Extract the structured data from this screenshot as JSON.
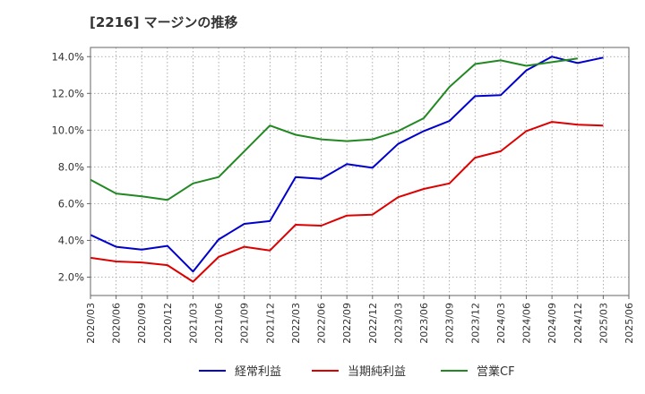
{
  "chart_data": {
    "type": "line",
    "title": "[2216]  マージンの推移",
    "x": [
      "2020/03",
      "2020/06",
      "2020/09",
      "2020/12",
      "2021/03",
      "2021/06",
      "2021/09",
      "2021/12",
      "2022/03",
      "2022/06",
      "2022/09",
      "2022/12",
      "2023/03",
      "2023/06",
      "2023/09",
      "2023/12",
      "2024/03",
      "2024/06",
      "2024/09",
      "2024/12",
      "2025/03",
      "2025/06"
    ],
    "ylim": [
      1.0,
      14.5
    ],
    "yticks": [
      2.0,
      4.0,
      6.0,
      8.0,
      10.0,
      12.0,
      14.0
    ],
    "ytick_labels": [
      "2.0%",
      "4.0%",
      "6.0%",
      "8.0%",
      "10.0%",
      "12.0%",
      "14.0%"
    ],
    "grid": true,
    "legend_position": "bottom",
    "series": [
      {
        "name": "経常利益",
        "color": "#0000cc",
        "values": [
          4.3,
          3.65,
          3.5,
          3.7,
          2.3,
          4.05,
          4.9,
          5.05,
          7.45,
          7.35,
          8.15,
          7.95,
          9.25,
          9.95,
          10.5,
          11.85,
          11.9,
          13.25,
          14.0,
          13.65,
          13.95,
          null
        ]
      },
      {
        "name": "当期純利益",
        "color": "#dd0000",
        "values": [
          3.05,
          2.85,
          2.8,
          2.65,
          1.75,
          3.1,
          3.65,
          3.45,
          4.85,
          4.8,
          5.35,
          5.4,
          6.35,
          6.8,
          7.1,
          8.5,
          8.85,
          9.95,
          10.45,
          10.3,
          10.25,
          null
        ]
      },
      {
        "name": "営業CF",
        "color": "#228822",
        "values": [
          7.3,
          6.55,
          6.4,
          6.2,
          7.1,
          7.45,
          8.85,
          10.25,
          9.75,
          9.5,
          9.4,
          9.5,
          9.95,
          10.65,
          12.35,
          13.6,
          13.8,
          13.5,
          13.7,
          13.9,
          null,
          null
        ]
      }
    ]
  }
}
